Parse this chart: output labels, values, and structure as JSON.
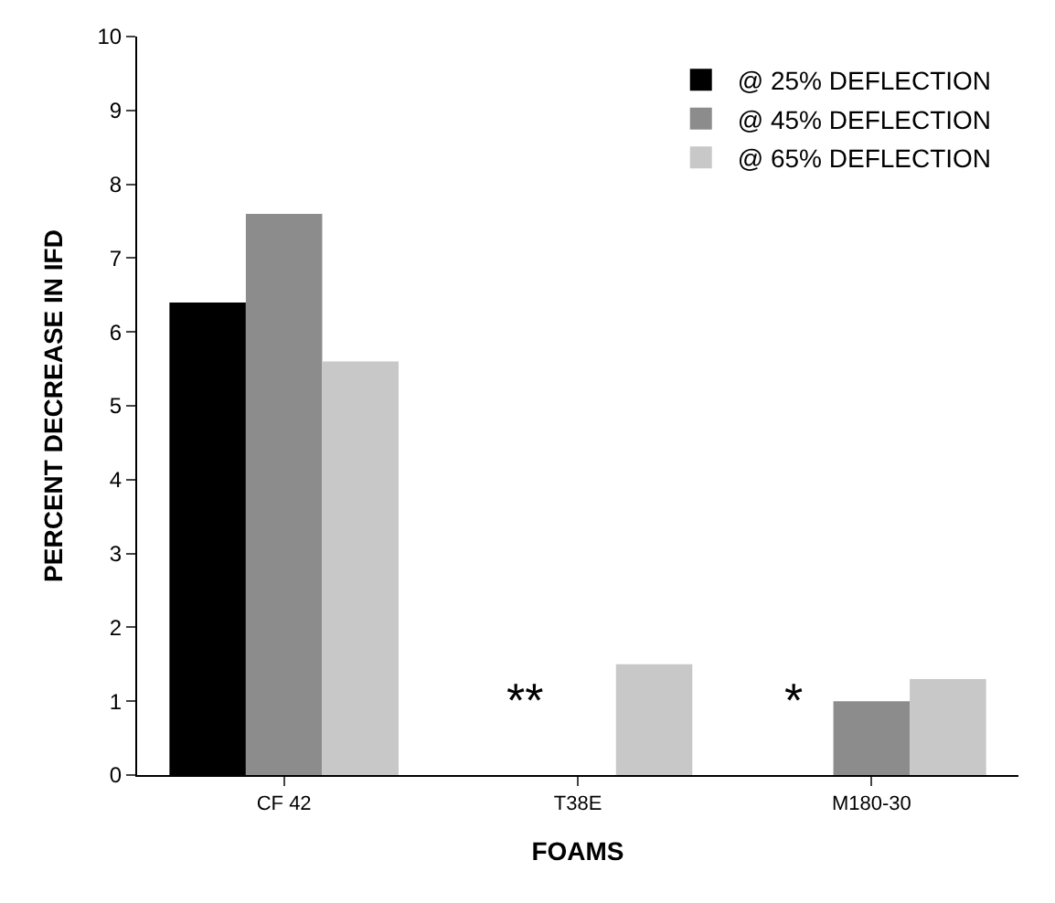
{
  "chart_data": {
    "type": "bar",
    "xlabel": "FOAMS",
    "ylabel": "PERCENT DECREASE IN IFD",
    "categories": [
      "CF 42",
      "T38E",
      "M180-30"
    ],
    "series": [
      {
        "name": "@ 25% DEFLECTION",
        "color": "#000000",
        "values": [
          6.4,
          null,
          null
        ]
      },
      {
        "name": "@ 45% DEFLECTION",
        "color": "#8c8c8c",
        "values": [
          7.6,
          null,
          1.0
        ]
      },
      {
        "name": "@ 65% DEFLECTION",
        "color": "#c8c8c8",
        "values": [
          5.6,
          1.5,
          1.3
        ]
      }
    ],
    "ylim": [
      0,
      10
    ],
    "yticks": [
      0,
      1,
      2,
      3,
      4,
      5,
      6,
      7,
      8,
      9,
      10
    ],
    "annotations": [
      "**",
      "*"
    ],
    "legend": "top right"
  }
}
